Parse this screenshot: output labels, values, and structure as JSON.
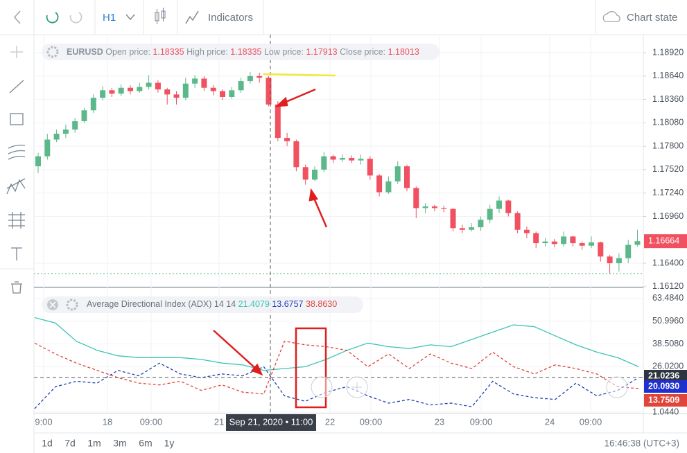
{
  "toolbar": {
    "timeframe": "H1",
    "indicators": "Indicators",
    "chart_state": "Chart state"
  },
  "price_chart": {
    "symbol": "EURUSD",
    "legend": [
      {
        "label": "Open price:",
        "value": "1.18335"
      },
      {
        "label": "High price:",
        "value": "1.18335"
      },
      {
        "label": "Low price:",
        "value": "1.17913"
      },
      {
        "label": "Close price:",
        "value": "1.18013"
      }
    ],
    "up_color": "#5cb88a",
    "down_color": "#f0505f",
    "ylim": [
      1.1611,
      1.19136
    ],
    "yticks": [
      {
        "value": 1.1892,
        "label": "1.18920"
      },
      {
        "value": 1.1864,
        "label": "1.18640"
      },
      {
        "value": 1.1836,
        "label": "1.18360"
      },
      {
        "value": 1.1808,
        "label": "1.18080"
      },
      {
        "value": 1.178,
        "label": "1.17800"
      },
      {
        "value": 1.1752,
        "label": "1.17520"
      },
      {
        "value": 1.1724,
        "label": "1.17240"
      },
      {
        "value": 1.1696,
        "label": "1.16960"
      },
      {
        "value": 1.164,
        "label": "1.16400"
      },
      {
        "value": 1.1612,
        "label": "1.16120"
      }
    ],
    "last_price": 1.16664,
    "ohlc": [
      [
        1.1756,
        1.1772,
        1.1748,
        1.1768
      ],
      [
        1.1768,
        1.1795,
        1.1764,
        1.1788
      ],
      [
        1.1788,
        1.18,
        1.1785,
        1.1795
      ],
      [
        1.1795,
        1.1806,
        1.179,
        1.18
      ],
      [
        1.18,
        1.1814,
        1.1796,
        1.181
      ],
      [
        1.181,
        1.1826,
        1.1808,
        1.1823
      ],
      [
        1.1823,
        1.1842,
        1.182,
        1.1838
      ],
      [
        1.1838,
        1.1852,
        1.1835,
        1.1847
      ],
      [
        1.1847,
        1.185,
        1.1839,
        1.1843
      ],
      [
        1.1843,
        1.1854,
        1.184,
        1.185
      ],
      [
        1.185,
        1.1853,
        1.1842,
        1.1846
      ],
      [
        1.1846,
        1.1856,
        1.1844,
        1.1851
      ],
      [
        1.1851,
        1.1865,
        1.1848,
        1.1856
      ],
      [
        1.1856,
        1.1859,
        1.1844,
        1.1848
      ],
      [
        1.1848,
        1.185,
        1.183,
        1.1842
      ],
      [
        1.1842,
        1.1846,
        1.183,
        1.1838
      ],
      [
        1.1838,
        1.1862,
        1.1835,
        1.1855
      ],
      [
        1.1855,
        1.1865,
        1.185,
        1.1861
      ],
      [
        1.1861,
        1.1864,
        1.1846,
        1.185
      ],
      [
        1.185,
        1.1853,
        1.1841,
        1.1846
      ],
      [
        1.1846,
        1.1848,
        1.1835,
        1.1839
      ],
      [
        1.1839,
        1.1851,
        1.1837,
        1.1847
      ],
      [
        1.1847,
        1.1862,
        1.1844,
        1.1858
      ],
      [
        1.1858,
        1.1869,
        1.1855,
        1.1864
      ],
      [
        1.1864,
        1.1868,
        1.1856,
        1.1862
      ],
      [
        1.1862,
        1.1864,
        1.1828,
        1.183
      ],
      [
        1.183,
        1.1834,
        1.1786,
        1.179
      ],
      [
        1.179,
        1.1796,
        1.178,
        1.1786
      ],
      [
        1.1786,
        1.1788,
        1.175,
        1.1755
      ],
      [
        1.1755,
        1.1758,
        1.1734,
        1.174
      ],
      [
        1.174,
        1.1756,
        1.1738,
        1.1752
      ],
      [
        1.1752,
        1.1773,
        1.1749,
        1.1768
      ],
      [
        1.1768,
        1.177,
        1.176,
        1.1764
      ],
      [
        1.1764,
        1.177,
        1.1761,
        1.1766
      ],
      [
        1.1766,
        1.1769,
        1.176,
        1.1763
      ],
      [
        1.1763,
        1.177,
        1.1758,
        1.1765
      ],
      [
        1.1765,
        1.1768,
        1.174,
        1.1745
      ],
      [
        1.1745,
        1.1747,
        1.172,
        1.1725
      ],
      [
        1.1725,
        1.1744,
        1.1723,
        1.1738
      ],
      [
        1.1738,
        1.1762,
        1.1735,
        1.1756
      ],
      [
        1.1756,
        1.1758,
        1.1726,
        1.173
      ],
      [
        1.173,
        1.1732,
        1.1694,
        1.1706
      ],
      [
        1.1706,
        1.1712,
        1.17,
        1.1708
      ],
      [
        1.1708,
        1.171,
        1.1702,
        1.1706
      ],
      [
        1.1706,
        1.1709,
        1.1701,
        1.1705
      ],
      [
        1.1705,
        1.1706,
        1.1678,
        1.1682
      ],
      [
        1.1682,
        1.1686,
        1.1676,
        1.168
      ],
      [
        1.168,
        1.1688,
        1.1678,
        1.1683
      ],
      [
        1.1683,
        1.1696,
        1.1679,
        1.1692
      ],
      [
        1.1692,
        1.171,
        1.1688,
        1.1705
      ],
      [
        1.1705,
        1.172,
        1.17,
        1.1715
      ],
      [
        1.1715,
        1.1716,
        1.1696,
        1.17
      ],
      [
        1.17,
        1.1702,
        1.1676,
        1.168
      ],
      [
        1.168,
        1.1684,
        1.167,
        1.1676
      ],
      [
        1.1676,
        1.1678,
        1.1658,
        1.1664
      ],
      [
        1.1664,
        1.167,
        1.166,
        1.1666
      ],
      [
        1.1666,
        1.1669,
        1.1659,
        1.1663
      ],
      [
        1.1663,
        1.1678,
        1.166,
        1.1672
      ],
      [
        1.1672,
        1.1673,
        1.166,
        1.1664
      ],
      [
        1.1664,
        1.1666,
        1.1656,
        1.1661
      ],
      [
        1.1661,
        1.1672,
        1.1658,
        1.1665
      ],
      [
        1.1665,
        1.1666,
        1.1642,
        1.1648
      ],
      [
        1.1648,
        1.165,
        1.1628,
        1.164
      ],
      [
        1.164,
        1.1652,
        1.163,
        1.1646
      ],
      [
        1.1646,
        1.1668,
        1.164,
        1.1662
      ],
      [
        1.1662,
        1.168,
        1.166,
        1.16664
      ]
    ]
  },
  "indicator": {
    "title": "Average Directional Index (ADX) 14 14",
    "legend_values": [
      {
        "text": "21.4079",
        "color": "#3cc4b4"
      },
      {
        "text": "13.6757",
        "color": "#1f3fb4"
      },
      {
        "text": "38.8630",
        "color": "#e0453a"
      }
    ],
    "ylim": [
      0.287,
      68.404
    ],
    "yticks": [
      {
        "value": 63.484,
        "label": "63.4840"
      },
      {
        "value": 50.996,
        "label": "50.9960"
      },
      {
        "value": 38.508,
        "label": "38.5080"
      },
      {
        "value": 26.02,
        "label": "26.0200"
      },
      {
        "value": 1.044,
        "label": "1.0440"
      }
    ],
    "series": [
      {
        "color": "#3cc4b4",
        "dash": false,
        "values": [
          53,
          50,
          40,
          35,
          32,
          31,
          31,
          31,
          30,
          28,
          27,
          24,
          25,
          26,
          30,
          35,
          39,
          37,
          36,
          38,
          37,
          41,
          45,
          49,
          48,
          43,
          38,
          34,
          31,
          26
        ]
      },
      {
        "color": "#e0453a",
        "dash": true,
        "values": [
          39,
          33,
          28,
          24,
          20,
          17,
          16,
          18,
          13,
          16,
          12,
          11,
          40,
          38,
          37,
          35,
          26,
          33,
          25,
          33,
          28,
          25,
          34,
          26,
          22,
          27,
          25,
          22,
          15,
          14
        ]
      },
      {
        "color": "#1f3fb4",
        "dash": true,
        "values": [
          3,
          15,
          18,
          17,
          24,
          21,
          28,
          22,
          20,
          22,
          21,
          26,
          10,
          7,
          12,
          15,
          10,
          6,
          8,
          5,
          6,
          4,
          18,
          11,
          9,
          8,
          17,
          10,
          13,
          20
        ]
      }
    ],
    "value_labels": [
      {
        "text": "21.0236",
        "color": "#2e3440"
      },
      {
        "text": "20.0930",
        "color": "#1f2fd0"
      },
      {
        "text": "13.7509",
        "color": "#e0453a"
      }
    ]
  },
  "time_axis": {
    "labels": [
      "9:00",
      "18",
      "09:00",
      "21",
      "22",
      "09:00",
      "23",
      "09:00",
      "24",
      "09:00"
    ],
    "crosshair": "Sep 21, 2020 • 11:00"
  },
  "bottom_bar": {
    "ranges": [
      "1d",
      "7d",
      "1m",
      "3m",
      "6m",
      "1y"
    ],
    "clock": "16:46:38 (UTC+3)"
  }
}
